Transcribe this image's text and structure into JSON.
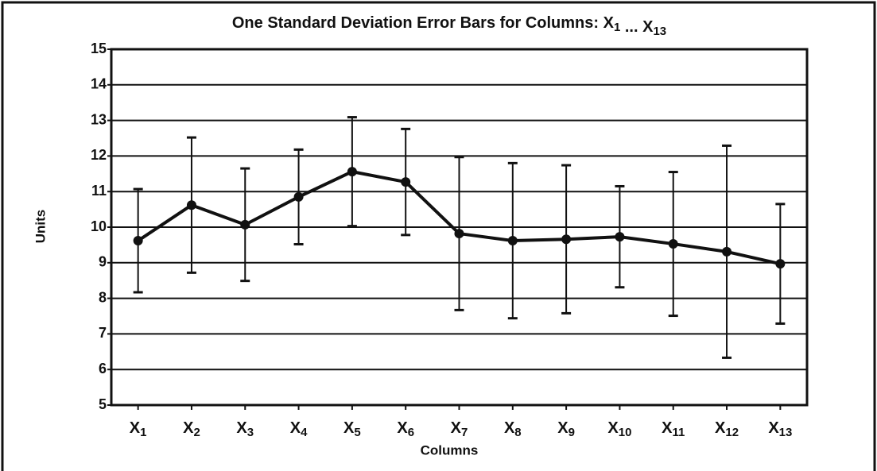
{
  "chart_data": {
    "type": "line",
    "title": "One Standard Deviation Error Bars for Columns: X1 ... X13",
    "xlabel": "Columns",
    "ylabel": "Units",
    "categories": [
      "X1",
      "X2",
      "X3",
      "X4",
      "X5",
      "X6",
      "X7",
      "X8",
      "X9",
      "X10",
      "X11",
      "X12",
      "X13"
    ],
    "values": [
      9.62,
      10.62,
      10.07,
      10.85,
      11.56,
      11.27,
      9.82,
      9.62,
      9.66,
      9.73,
      9.53,
      9.31,
      8.97
    ],
    "errors": [
      1.45,
      1.9,
      1.58,
      1.33,
      1.53,
      1.49,
      2.15,
      2.18,
      2.08,
      1.42,
      2.02,
      2.98,
      1.68
    ],
    "color": "#111111",
    "ylim": [
      5,
      15
    ],
    "yticks": [
      5,
      6,
      7,
      8,
      9,
      10,
      11,
      12,
      13,
      14,
      15
    ],
    "grid": true
  }
}
